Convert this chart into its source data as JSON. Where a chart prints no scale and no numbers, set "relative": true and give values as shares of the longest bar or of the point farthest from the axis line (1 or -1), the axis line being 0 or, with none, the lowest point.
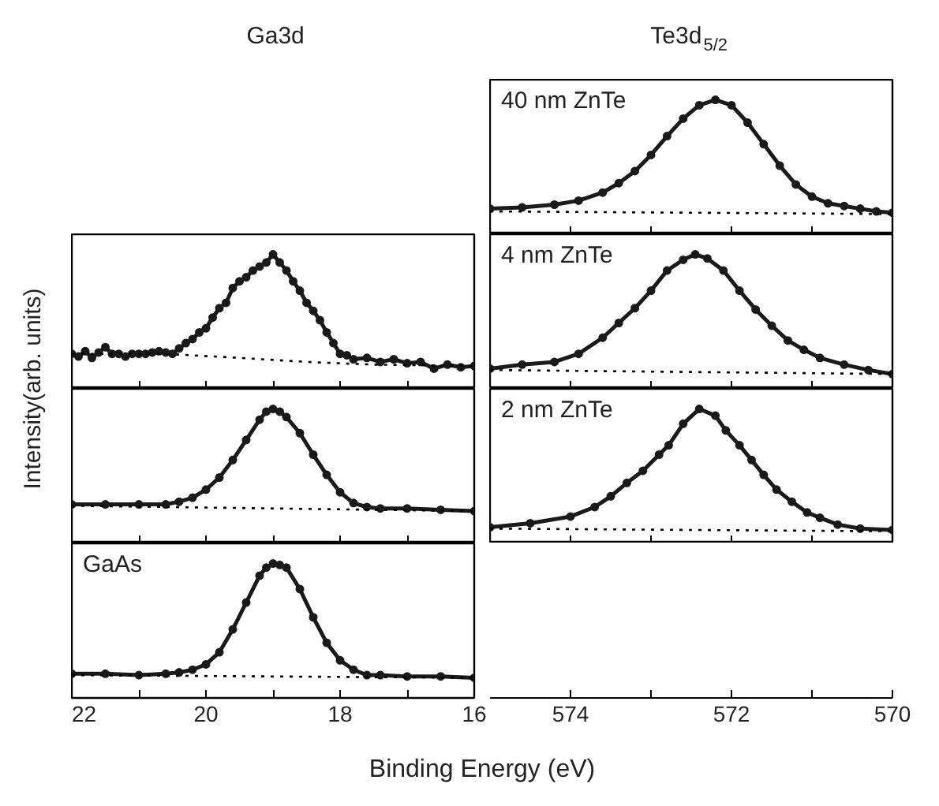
{
  "chart_data": [
    {
      "type": "line",
      "title": "Te3d$_{5/2}$",
      "relative": true,
      "xlim": [
        575,
        570
      ],
      "xticks": [
        574,
        {
          "value": 573,
          "label": null
        },
        572,
        {
          "value": 571,
          "label": null
        },
        570
      ],
      "tick_labels": false,
      "annotations": [
        "40 nm ZnTe"
      ],
      "series": [
        {
          "color": "#1a1a1a",
          "marker": "circle",
          "line_style": "solid",
          "x": [
            575,
            574.6,
            574.2,
            573.9,
            573.6,
            573.4,
            573.2,
            573.0,
            572.8,
            572.6,
            572.4,
            572.2,
            572.0,
            571.8,
            571.6,
            571.4,
            571.2,
            571.0,
            570.8,
            570.6,
            570.4,
            570.2,
            570
          ],
          "values": [
            0.19,
            0.2,
            0.22,
            0.25,
            0.31,
            0.38,
            0.47,
            0.59,
            0.73,
            0.86,
            0.96,
            1.0,
            0.96,
            0.83,
            0.67,
            0.51,
            0.37,
            0.28,
            0.23,
            0.21,
            0.19,
            0.17,
            0.16
          ]
        },
        {
          "color": "#000000",
          "marker": "none",
          "line_style": "dotted",
          "x": [
            575,
            570
          ],
          "values": [
            0.17,
            0.15
          ]
        }
      ]
    },
    {
      "type": "line",
      "title": "Ga3d",
      "ylabel": "Intensity(arb. units)",
      "relative": true,
      "xlim": [
        22,
        16
      ],
      "xticks": [
        22,
        {
          "value": 21,
          "label": null
        },
        20,
        {
          "value": 19,
          "label": null
        },
        18,
        {
          "value": 17,
          "label": null
        },
        16
      ],
      "tick_labels": false,
      "series": [
        {
          "color": "#1a1a1a",
          "marker": "circle",
          "line_style": "solid",
          "x": [
            22.0,
            21.9,
            21.8,
            21.7,
            21.6,
            21.5,
            21.4,
            21.3,
            21.2,
            21.1,
            21.0,
            20.9,
            20.8,
            20.7,
            20.6,
            20.5,
            20.4,
            20.3,
            20.2,
            20.1,
            20.0,
            19.9,
            19.8,
            19.7,
            19.6,
            19.5,
            19.4,
            19.3,
            19.2,
            19.1,
            19.0,
            18.9,
            18.8,
            18.7,
            18.6,
            18.5,
            18.4,
            18.3,
            18.2,
            18.1,
            18.0,
            17.9,
            17.8,
            17.6,
            17.4,
            17.2,
            17.0,
            16.8,
            16.6,
            16.4,
            16.2,
            16.0
          ],
          "values": [
            0.26,
            0.24,
            0.28,
            0.23,
            0.27,
            0.31,
            0.26,
            0.26,
            0.24,
            0.26,
            0.26,
            0.26,
            0.27,
            0.28,
            0.27,
            0.26,
            0.3,
            0.34,
            0.37,
            0.42,
            0.45,
            0.53,
            0.6,
            0.64,
            0.75,
            0.8,
            0.83,
            0.88,
            0.91,
            0.94,
            1.0,
            0.94,
            0.88,
            0.8,
            0.73,
            0.64,
            0.58,
            0.51,
            0.42,
            0.34,
            0.26,
            0.25,
            0.22,
            0.23,
            0.2,
            0.22,
            0.19,
            0.2,
            0.15,
            0.18,
            0.16,
            0.17
          ]
        },
        {
          "color": "#000000",
          "marker": "none",
          "line_style": "dotted",
          "x": [
            22,
            20.6,
            19.5,
            18.5,
            17.5,
            16
          ],
          "values": [
            0.26,
            0.26,
            0.23,
            0.2,
            0.18,
            0.17
          ]
        }
      ]
    },
    {
      "type": "line",
      "relative": true,
      "xlim": [
        575,
        570
      ],
      "xticks": [
        574,
        {
          "value": 573,
          "label": null
        },
        572,
        {
          "value": 571,
          "label": null
        },
        570
      ],
      "tick_labels": false,
      "annotations": [
        "4 nm ZnTe"
      ],
      "series": [
        {
          "color": "#1a1a1a",
          "marker": "circle",
          "line_style": "solid",
          "x": [
            575,
            574.6,
            574.2,
            573.9,
            573.6,
            573.4,
            573.2,
            573.0,
            572.8,
            572.6,
            572.45,
            572.3,
            572.1,
            571.9,
            571.7,
            571.5,
            571.3,
            571.1,
            570.9,
            570.6,
            570.3,
            570
          ],
          "values": [
            0.15,
            0.18,
            0.2,
            0.26,
            0.38,
            0.49,
            0.6,
            0.73,
            0.88,
            0.96,
            1.0,
            0.97,
            0.88,
            0.73,
            0.59,
            0.47,
            0.36,
            0.29,
            0.23,
            0.18,
            0.14,
            0.11
          ]
        },
        {
          "color": "#000000",
          "marker": "none",
          "line_style": "dotted",
          "x": [
            575,
            570
          ],
          "values": [
            0.14,
            0.11
          ]
        }
      ]
    },
    {
      "type": "line",
      "relative": true,
      "xlim": [
        22,
        16
      ],
      "xticks": [
        22,
        {
          "value": 21,
          "label": null
        },
        20,
        {
          "value": 19,
          "label": null
        },
        18,
        {
          "value": 17,
          "label": null
        },
        16
      ],
      "tick_labels": false,
      "series": [
        {
          "color": "#1a1a1a",
          "marker": "circle",
          "line_style": "solid",
          "x": [
            22,
            21.5,
            21.0,
            20.6,
            20.4,
            20.2,
            20.0,
            19.8,
            19.6,
            19.4,
            19.2,
            19.1,
            19.0,
            18.9,
            18.8,
            18.6,
            18.4,
            18.2,
            18.0,
            17.8,
            17.6,
            17.4,
            17.0,
            16.5,
            16.0
          ],
          "values": [
            0.29,
            0.29,
            0.29,
            0.29,
            0.31,
            0.34,
            0.4,
            0.49,
            0.62,
            0.77,
            0.92,
            0.98,
            1.0,
            0.98,
            0.94,
            0.82,
            0.66,
            0.51,
            0.38,
            0.3,
            0.27,
            0.26,
            0.26,
            0.25,
            0.24
          ]
        },
        {
          "color": "#000000",
          "marker": "none",
          "line_style": "dotted",
          "x": [
            22,
            19,
            16
          ],
          "values": [
            0.28,
            0.26,
            0.24
          ]
        }
      ]
    },
    {
      "type": "line",
      "relative": true,
      "xlim": [
        575,
        570
      ],
      "xticks": [
        574,
        {
          "value": 573,
          "label": null
        },
        572,
        {
          "value": 571,
          "label": null
        },
        570
      ],
      "tick_labels": "x",
      "annotations": [
        "2 nm ZnTe"
      ],
      "series": [
        {
          "color": "#1a1a1a",
          "marker": "circle",
          "line_style": "solid",
          "x": [
            575,
            574.5,
            574.0,
            573.7,
            573.5,
            573.3,
            573.1,
            572.9,
            572.78,
            572.6,
            572.4,
            572.2,
            572.07,
            571.9,
            571.75,
            571.6,
            571.44,
            571.25,
            571.06,
            570.9,
            570.68,
            570.4,
            570
          ],
          "values": [
            0.12,
            0.15,
            0.2,
            0.27,
            0.35,
            0.45,
            0.54,
            0.66,
            0.73,
            0.89,
            1.0,
            0.95,
            0.84,
            0.73,
            0.62,
            0.51,
            0.4,
            0.31,
            0.23,
            0.19,
            0.14,
            0.11,
            0.1
          ]
        },
        {
          "color": "#000000",
          "marker": "none",
          "line_style": "dotted",
          "x": [
            575,
            570
          ],
          "values": [
            0.11,
            0.09
          ]
        }
      ]
    },
    {
      "type": "line",
      "relative": true,
      "xlabel": "Binding Energy (eV)",
      "xlim": [
        22,
        16
      ],
      "xticks": [
        22,
        {
          "value": 21,
          "label": null
        },
        20,
        {
          "value": 19,
          "label": null
        },
        18,
        {
          "value": 17,
          "label": null
        },
        16
      ],
      "tick_labels": "x",
      "annotations": [
        "GaAs"
      ],
      "series": [
        {
          "color": "#1a1a1a",
          "marker": "circle",
          "line_style": "solid",
          "x": [
            22,
            21.5,
            21.0,
            20.6,
            20.4,
            20.2,
            20.0,
            19.8,
            19.6,
            19.4,
            19.2,
            19.1,
            19.0,
            18.9,
            18.8,
            18.6,
            18.4,
            18.2,
            18.0,
            17.8,
            17.6,
            17.4,
            17.0,
            16.5,
            16.0
          ],
          "values": [
            0.18,
            0.18,
            0.17,
            0.18,
            0.19,
            0.21,
            0.25,
            0.34,
            0.51,
            0.71,
            0.91,
            0.97,
            1.0,
            0.99,
            0.97,
            0.81,
            0.6,
            0.41,
            0.28,
            0.21,
            0.17,
            0.17,
            0.16,
            0.16,
            0.15
          ]
        },
        {
          "color": "#000000",
          "marker": "none",
          "line_style": "dotted",
          "x": [
            22,
            19,
            16
          ],
          "values": [
            0.17,
            0.16,
            0.15
          ]
        }
      ]
    }
  ]
}
